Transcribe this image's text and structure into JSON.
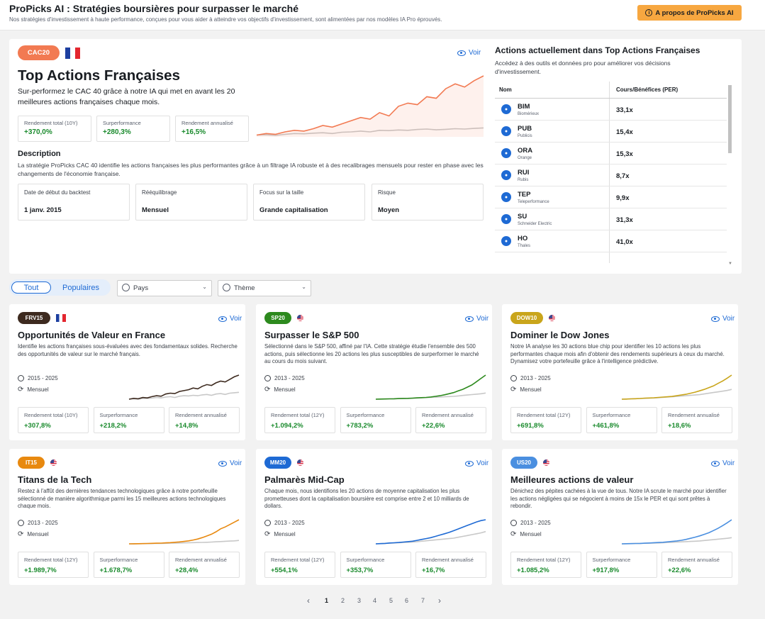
{
  "header": {
    "title": "ProPicks AI : Stratégies boursières pour surpasser le marché",
    "subtitle": "Nos stratégies d'investissement à haute performance, conçues pour vous aider à atteindre vos objectifs d'investissement, sont alimentées par nos modèles IA Pro éprouvés.",
    "about_button": "A propos de ProPicks AI"
  },
  "featured": {
    "badge": "CAC20",
    "flag": "fr",
    "voir": "Voir",
    "title": "Top Actions Françaises",
    "subtitle": "Sur-performez le CAC 40 grâce à notre IA qui met en avant les 20 meilleures actions françaises chaque mois.",
    "metrics": [
      {
        "label": "Rendement total (10Y)",
        "value": "+370,0%"
      },
      {
        "label": "Surperformance",
        "value": "+280,3%"
      },
      {
        "label": "Rendement annualisé",
        "value": "+16,5%"
      }
    ],
    "description_heading": "Description",
    "description": "La stratégie ProPicks CAC 40 identifie les actions françaises les plus performantes grâce à un filtrage IA robuste et à des recalibrages mensuels pour rester en phase avec les changements de l'économie française.",
    "info": [
      {
        "label": "Date de début du backtest",
        "value": "1 janv. 2015"
      },
      {
        "label": "Rééquilibrage",
        "value": "Mensuel"
      },
      {
        "label": "Focus sur la taille",
        "value": "Grande capitalisation"
      },
      {
        "label": "Risque",
        "value": "Moyen"
      }
    ],
    "chart_data": {
      "type": "line",
      "series": [
        {
          "values": [
            1.0,
            1.1,
            1.05,
            1.2,
            1.3,
            1.25,
            1.4,
            1.6,
            1.5,
            1.7,
            1.9,
            2.1,
            2.0,
            2.4,
            2.2,
            2.8,
            3.0,
            2.9,
            3.4,
            3.3,
            3.9,
            4.2,
            4.0,
            4.4,
            4.7
          ],
          "color": "#f27a52"
        },
        {
          "values": [
            1.0,
            1.02,
            0.98,
            1.05,
            1.1,
            1.08,
            1.12,
            1.15,
            1.1,
            1.18,
            1.2,
            1.25,
            1.2,
            1.3,
            1.28,
            1.32,
            1.3,
            1.35,
            1.38,
            1.33,
            1.36,
            1.4,
            1.38,
            1.42,
            1.45
          ],
          "color": "#c8c8c8"
        }
      ]
    }
  },
  "holdings": {
    "title": "Actions actuellement dans Top Actions Françaises",
    "subtitle": "Accédez à des outils et données pro pour améliorer vos décisions d'investissement.",
    "col_name": "Nom",
    "col_per": "Cours/Bénéfices (PER)",
    "rows": [
      {
        "ticker": "BIM",
        "name": "Biomérieux",
        "per": "33,1x"
      },
      {
        "ticker": "PUB",
        "name": "Publicis",
        "per": "15,4x"
      },
      {
        "ticker": "ORA",
        "name": "Orange",
        "per": "15,3x"
      },
      {
        "ticker": "RUI",
        "name": "Rubis",
        "per": "8,7x"
      },
      {
        "ticker": "TEP",
        "name": "Teleperformance",
        "per": "9,9x"
      },
      {
        "ticker": "SU",
        "name": "Schneider Electric",
        "per": "31,3x"
      },
      {
        "ticker": "HO",
        "name": "Thales",
        "per": "41,0x"
      }
    ]
  },
  "filters": {
    "all": "Tout",
    "popular": "Populaires",
    "country": "Pays",
    "theme": "Thème"
  },
  "cards": [
    {
      "badge": "FRV15",
      "badge_color": "#3d2a1f",
      "flag": "fr",
      "title": "Opportunités de Valeur en France",
      "desc": "Identifie les actions françaises sous-évaluées avec des fondamentaux solides. Recherche des opportunités de valeur sur le marché français.",
      "years": "2015 - 2025",
      "rebalance": "Mensuel",
      "metrics": [
        {
          "label": "Rendement total (10Y)",
          "value": "+307,8%"
        },
        {
          "label": "Surperformance",
          "value": "+218,2%"
        },
        {
          "label": "Rendement annualisé",
          "value": "+14,8%"
        }
      ],
      "line_color": "#3d2a1f",
      "chart": [
        1,
        1.1,
        1.05,
        1.2,
        1.15,
        1.3,
        1.4,
        1.35,
        1.6,
        1.7,
        1.65,
        1.9,
        2.0,
        2.1,
        2.3,
        2.2,
        2.5,
        2.7,
        2.6,
        2.9,
        3.1,
        3.0,
        3.3,
        3.6,
        3.8
      ],
      "bench": [
        1,
        1.05,
        1.0,
        1.1,
        1.08,
        1.12,
        1.2,
        1.15,
        1.25,
        1.3,
        1.2,
        1.35,
        1.4,
        1.38,
        1.45,
        1.4,
        1.5,
        1.55,
        1.45,
        1.6,
        1.65,
        1.55,
        1.7,
        1.75,
        1.8
      ]
    },
    {
      "badge": "SP20",
      "badge_color": "#2d8a1e",
      "flag": "us",
      "title": "Surpasser le S&P 500",
      "desc": "Sélectionné dans le S&P 500, affiné par l'IA. Cette stratégie étudie l'ensemble des 500 actions, puis sélectionne les 20 actions les plus susceptibles de surperformer le marché au cours du mois suivant.",
      "years": "2013 - 2025",
      "rebalance": "Mensuel",
      "metrics": [
        {
          "label": "Rendement total (12Y)",
          "value": "+1.094,2%"
        },
        {
          "label": "Surperformance",
          "value": "+783,2%"
        },
        {
          "label": "Rendement annualisé",
          "value": "+22,6%"
        }
      ],
      "line_color": "#2d8a1e",
      "chart": [
        1,
        1.05,
        1.1,
        1.15,
        1.2,
        1.3,
        1.35,
        1.4,
        1.5,
        1.6,
        1.7,
        1.8,
        2.0,
        2.3,
        2.6,
        3.0,
        3.5,
        4.0,
        4.8,
        5.5,
        6.5,
        7.5,
        9.0,
        10.5,
        12.0
      ],
      "bench": [
        1,
        1.05,
        1.1,
        1.15,
        1.2,
        1.25,
        1.3,
        1.35,
        1.4,
        1.5,
        1.6,
        1.7,
        1.8,
        1.9,
        2.0,
        2.1,
        2.2,
        2.3,
        2.5,
        2.7,
        2.9,
        3.1,
        3.3,
        3.5,
        3.8
      ]
    },
    {
      "badge": "DOW10",
      "badge_color": "#c9a51b",
      "flag": "us",
      "title": "Dominer le Dow Jones",
      "desc": "Notre IA analyse les 30 actions blue chip pour identifier les 10 actions les plus performantes chaque mois afin d'obtenir des rendements supérieurs à ceux du marché. Dynamisez votre portefeuille grâce à l'intelligence prédictive.",
      "years": "2013 - 2025",
      "rebalance": "Mensuel",
      "metrics": [
        {
          "label": "Rendement total (12Y)",
          "value": "+691,8%"
        },
        {
          "label": "Surperformance",
          "value": "+461,8%"
        },
        {
          "label": "Rendement annualisé",
          "value": "+18,6%"
        }
      ],
      "line_color": "#c9a51b",
      "chart": [
        1,
        1.05,
        1.1,
        1.15,
        1.2,
        1.3,
        1.35,
        1.4,
        1.5,
        1.6,
        1.7,
        1.8,
        2.0,
        2.2,
        2.4,
        2.7,
        3.0,
        3.4,
        3.8,
        4.3,
        4.8,
        5.5,
        6.2,
        7.0,
        7.9
      ],
      "bench": [
        1,
        1.05,
        1.1,
        1.15,
        1.2,
        1.25,
        1.3,
        1.35,
        1.4,
        1.5,
        1.6,
        1.7,
        1.8,
        1.9,
        2.0,
        2.1,
        2.2,
        2.3,
        2.5,
        2.7,
        2.9,
        3.1,
        3.3,
        3.5,
        3.8
      ]
    },
    {
      "badge": "IT15",
      "badge_color": "#e8890f",
      "flag": "us",
      "title": "Titans de la Tech",
      "desc": "Restez à l'affût des dernières tendances technologiques grâce à notre portefeuille sélectionné de manière algorithmique parmi les 15 meilleures actions technologiques chaque mois.",
      "years": "2013 - 2025",
      "rebalance": "Mensuel",
      "metrics": [
        {
          "label": "Rendement total (12Y)",
          "value": "+1.989,7%"
        },
        {
          "label": "Surperformance",
          "value": "+1.678,7%"
        },
        {
          "label": "Rendement annualisé",
          "value": "+28,4%"
        }
      ],
      "line_color": "#e8890f",
      "chart": [
        1,
        1.05,
        1.1,
        1.2,
        1.3,
        1.4,
        1.5,
        1.6,
        1.8,
        2.0,
        2.3,
        2.6,
        3.0,
        3.5,
        4.2,
        5.0,
        6.2,
        7.5,
        9.0,
        11.0,
        13.5,
        15.0,
        17.0,
        19.0,
        21.0
      ],
      "bench": [
        1,
        1.05,
        1.1,
        1.15,
        1.2,
        1.25,
        1.3,
        1.35,
        1.4,
        1.5,
        1.6,
        1.7,
        1.8,
        1.9,
        2.0,
        2.1,
        2.2,
        2.3,
        2.5,
        2.7,
        2.9,
        3.1,
        3.3,
        3.5,
        3.8
      ]
    },
    {
      "badge": "MM20",
      "badge_color": "#1e6ad4",
      "flag": "us",
      "title": "Palmarès Mid-Cap",
      "desc": "Chaque mois, nous identifions les 20 actions de moyenne capitalisation les plus prometteuses dont la capitalisation boursière est comprise entre 2 et 10 milliards de dollars.",
      "years": "2013 - 2025",
      "rebalance": "Mensuel",
      "metrics": [
        {
          "label": "Rendement total (12Y)",
          "value": "+554,1%"
        },
        {
          "label": "Surperformance",
          "value": "+353,7%"
        },
        {
          "label": "Rendement annualisé",
          "value": "+16,7%"
        }
      ],
      "line_color": "#1e6ad4",
      "chart": [
        1,
        1.05,
        1.1,
        1.2,
        1.25,
        1.3,
        1.4,
        1.5,
        1.6,
        1.8,
        2.0,
        2.2,
        2.4,
        2.7,
        3.0,
        3.3,
        3.6,
        4.0,
        4.4,
        4.8,
        5.2,
        5.6,
        6.0,
        6.3,
        6.5
      ],
      "bench": [
        1,
        1.05,
        1.1,
        1.15,
        1.2,
        1.25,
        1.3,
        1.35,
        1.4,
        1.5,
        1.6,
        1.7,
        1.8,
        1.9,
        2.0,
        2.1,
        2.2,
        2.3,
        2.5,
        2.7,
        2.9,
        3.1,
        3.3,
        3.5,
        3.8
      ]
    },
    {
      "badge": "US20",
      "badge_color": "#4a8fe0",
      "flag": "us",
      "title": "Meilleures actions de valeur",
      "desc": "Dénichez des pépites cachées à la vue de tous. Notre IA scrute le marché pour identifier les actions négligées qui se négocient à moins de 15x le PER et qui sont prêtes à rebondir.",
      "years": "2013 - 2025",
      "rebalance": "Mensuel",
      "metrics": [
        {
          "label": "Rendement total (12Y)",
          "value": "+1.085,2%"
        },
        {
          "label": "Surperformance",
          "value": "+917,8%"
        },
        {
          "label": "Rendement annualisé",
          "value": "+22,6%"
        }
      ],
      "line_color": "#4a8fe0",
      "chart": [
        1,
        1.05,
        1.1,
        1.15,
        1.2,
        1.3,
        1.4,
        1.5,
        1.6,
        1.7,
        1.9,
        2.1,
        2.3,
        2.6,
        3.0,
        3.5,
        4.0,
        4.6,
        5.3,
        6.0,
        7.0,
        8.0,
        9.2,
        10.5,
        11.9
      ],
      "bench": [
        1,
        1.05,
        1.1,
        1.15,
        1.2,
        1.25,
        1.3,
        1.35,
        1.4,
        1.5,
        1.6,
        1.7,
        1.8,
        1.9,
        2.0,
        2.1,
        2.2,
        2.3,
        2.5,
        2.7,
        2.9,
        3.1,
        3.3,
        3.5,
        3.8
      ]
    }
  ],
  "voir": "Voir",
  "pagination": {
    "prev": "‹",
    "pages": [
      "1",
      "2",
      "3",
      "4",
      "5",
      "6",
      "7"
    ],
    "next": "›"
  }
}
